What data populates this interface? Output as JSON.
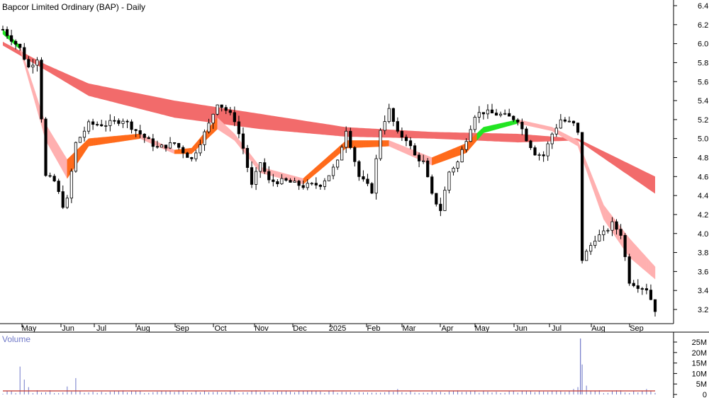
{
  "chart_data": [
    {
      "type": "candlestick",
      "title": "Bapcor Limited Ordinary (BAP) - Daily",
      "x_labels": [
        "May",
        "Jun",
        "Jul",
        "Aug",
        "Sep",
        "Oct",
        "Nov",
        "Dec",
        "2025",
        "Feb",
        "Mar",
        "Apr",
        "May",
        "Jun",
        "Jul",
        "Aug",
        "Sep"
      ],
      "y_ticks": [
        "6.4",
        "6.2",
        "6.0",
        "5.8",
        "5.6",
        "5.4",
        "5.2",
        "5.0",
        "4.8",
        "4.6",
        "4.4",
        "4.2",
        "4.0",
        "3.8",
        "3.6",
        "3.4",
        "3.2"
      ],
      "ylim": [
        3.1,
        6.5
      ],
      "grid": false,
      "colors": {
        "price": "#000000",
        "long_band": "#f26b6b",
        "short_band_up": "#22e522",
        "short_band_down": "#ff6a1a",
        "short_band_fall": "#ffb0b0"
      },
      "price_path": [
        [
          0,
          6.15
        ],
        [
          4,
          5.95
        ],
        [
          6,
          5.75
        ],
        [
          8,
          5.85
        ],
        [
          10,
          4.6
        ],
        [
          12,
          4.55
        ],
        [
          14,
          4.3
        ],
        [
          15,
          4.35
        ],
        [
          17,
          4.95
        ],
        [
          20,
          5.15
        ],
        [
          24,
          5.15
        ],
        [
          28,
          5.2
        ],
        [
          32,
          5.05
        ],
        [
          36,
          4.9
        ],
        [
          40,
          4.95
        ],
        [
          44,
          4.78
        ],
        [
          48,
          5.15
        ],
        [
          50,
          5.38
        ],
        [
          52,
          5.3
        ],
        [
          54,
          5.2
        ],
        [
          56,
          4.9
        ],
        [
          58,
          4.5
        ],
        [
          60,
          4.75
        ],
        [
          62,
          4.55
        ],
        [
          66,
          4.55
        ],
        [
          70,
          4.5
        ],
        [
          74,
          4.52
        ],
        [
          76,
          4.62
        ],
        [
          78,
          4.75
        ],
        [
          80,
          5.1
        ],
        [
          83,
          4.6
        ],
        [
          86,
          4.45
        ],
        [
          88,
          5.1
        ],
        [
          90,
          5.3
        ],
        [
          92,
          5.05
        ],
        [
          94,
          5.0
        ],
        [
          96,
          4.82
        ],
        [
          98,
          4.75
        ],
        [
          100,
          4.4
        ],
        [
          102,
          4.25
        ],
        [
          104,
          4.65
        ],
        [
          106,
          4.75
        ],
        [
          108,
          5.0
        ],
        [
          110,
          5.25
        ],
        [
          112,
          5.28
        ],
        [
          116,
          5.25
        ],
        [
          120,
          5.2
        ],
        [
          122,
          5.0
        ],
        [
          124,
          4.85
        ],
        [
          126,
          4.82
        ],
        [
          128,
          5.05
        ],
        [
          130,
          5.2
        ],
        [
          133,
          5.15
        ],
        [
          134,
          5.05
        ],
        [
          134.6,
          3.7
        ],
        [
          136,
          3.8
        ],
        [
          138,
          3.95
        ],
        [
          140,
          4.0
        ],
        [
          142,
          4.1
        ],
        [
          144,
          4.0
        ],
        [
          146,
          3.5
        ],
        [
          148,
          3.45
        ],
        [
          150,
          3.42
        ],
        [
          152,
          3.2
        ]
      ],
      "long_band_upper": [
        [
          0,
          6.02
        ],
        [
          10,
          5.78
        ],
        [
          20,
          5.58
        ],
        [
          40,
          5.4
        ],
        [
          60,
          5.26
        ],
        [
          80,
          5.12
        ],
        [
          100,
          5.07
        ],
        [
          120,
          5.05
        ],
        [
          134,
          5.0
        ],
        [
          152,
          4.6
        ]
      ],
      "long_band_lower": [
        [
          0,
          5.98
        ],
        [
          10,
          5.72
        ],
        [
          20,
          5.45
        ],
        [
          40,
          5.22
        ],
        [
          60,
          5.1
        ],
        [
          80,
          5.02
        ],
        [
          100,
          5.0
        ],
        [
          120,
          4.96
        ],
        [
          134,
          4.98
        ],
        [
          152,
          4.42
        ]
      ],
      "short_band_upper": [
        [
          0,
          6.15
        ],
        [
          4,
          5.98
        ],
        [
          10,
          5.15
        ],
        [
          15,
          4.78
        ],
        [
          20,
          5.0
        ],
        [
          32,
          5.05
        ],
        [
          40,
          4.88
        ],
        [
          44,
          4.9
        ],
        [
          50,
          5.22
        ],
        [
          54,
          5.05
        ],
        [
          60,
          4.7
        ],
        [
          70,
          4.58
        ],
        [
          80,
          4.98
        ],
        [
          90,
          4.98
        ],
        [
          100,
          4.8
        ],
        [
          108,
          4.95
        ],
        [
          112,
          5.12
        ],
        [
          120,
          5.2
        ],
        [
          128,
          5.12
        ],
        [
          134,
          4.98
        ],
        [
          140,
          4.3
        ],
        [
          146,
          3.95
        ],
        [
          152,
          3.65
        ]
      ],
      "short_band_lower": [
        [
          0,
          6.1
        ],
        [
          4,
          5.94
        ],
        [
          10,
          4.98
        ],
        [
          15,
          4.58
        ],
        [
          20,
          4.92
        ],
        [
          32,
          5.0
        ],
        [
          40,
          4.84
        ],
        [
          44,
          4.84
        ],
        [
          50,
          5.1
        ],
        [
          54,
          4.98
        ],
        [
          60,
          4.64
        ],
        [
          70,
          4.52
        ],
        [
          80,
          4.9
        ],
        [
          90,
          4.92
        ],
        [
          100,
          4.72
        ],
        [
          108,
          4.85
        ],
        [
          112,
          5.06
        ],
        [
          120,
          5.16
        ],
        [
          128,
          5.08
        ],
        [
          134,
          4.92
        ],
        [
          140,
          4.15
        ],
        [
          146,
          3.75
        ],
        [
          152,
          3.52
        ]
      ]
    },
    {
      "type": "bar",
      "title": "Volume",
      "y_ticks": [
        "25M",
        "20M",
        "15M",
        "10M",
        "5M",
        "0"
      ],
      "ylim": [
        0,
        28
      ],
      "volume_spikes": [
        [
          0,
          0.3
        ],
        [
          4,
          13.3
        ],
        [
          5,
          7.1
        ],
        [
          6,
          3.5
        ],
        [
          8,
          2.0
        ],
        [
          15,
          3.8
        ],
        [
          17,
          7.8
        ],
        [
          40,
          1.2
        ],
        [
          50,
          1.3
        ],
        [
          60,
          1.1
        ],
        [
          90,
          1.6
        ],
        [
          92,
          2.6
        ],
        [
          110,
          1.5
        ],
        [
          127,
          1.3
        ],
        [
          133,
          2.6
        ],
        [
          134,
          3.5
        ],
        [
          134.6,
          26.7
        ],
        [
          135,
          14.3
        ],
        [
          136,
          4.2
        ],
        [
          150,
          2.6
        ]
      ],
      "average_line_value": 1.7
    }
  ]
}
